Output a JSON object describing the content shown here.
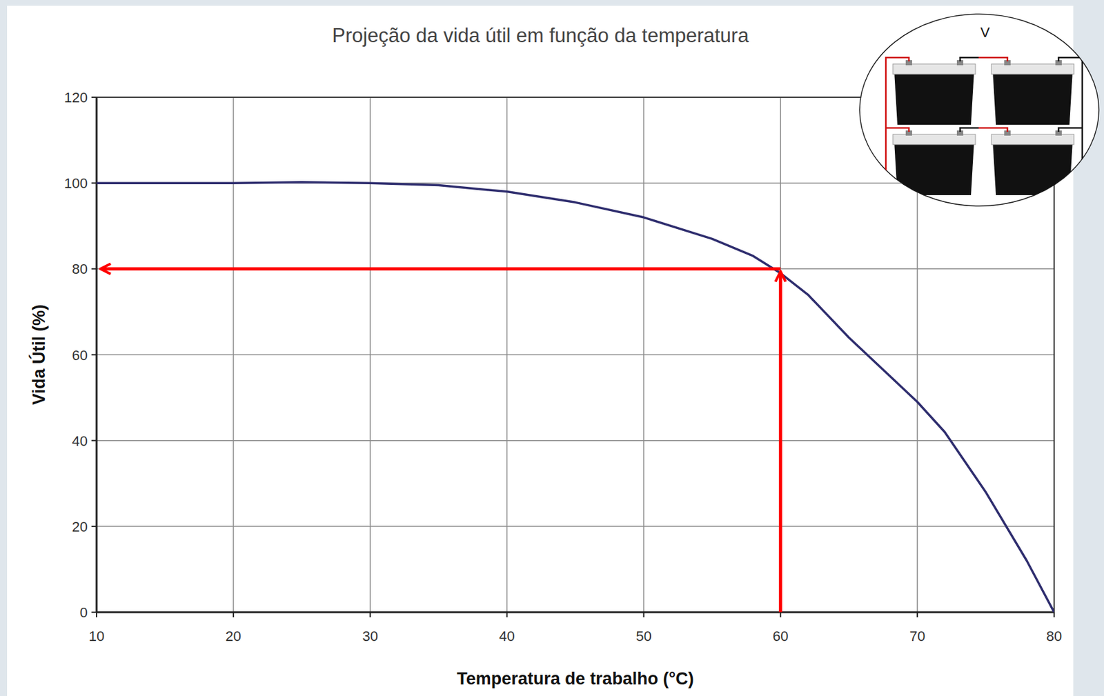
{
  "chart_data": {
    "type": "line",
    "title": "Projeção da vida útil em função da temperatura",
    "x_label": "Temperatura de trabalho (°C)",
    "y_label": "Vida Útil (%)",
    "x": [
      10,
      20,
      25,
      30,
      35,
      40,
      45,
      50,
      55,
      58,
      60,
      62,
      65,
      68,
      70,
      72,
      75,
      78,
      80
    ],
    "values": [
      100,
      100,
      100.2,
      100,
      99.5,
      98,
      95.5,
      92,
      87,
      83,
      79,
      74,
      64,
      55,
      49,
      42,
      28,
      12,
      0
    ],
    "color": "#2e2d6e",
    "xlim": [
      10,
      80
    ],
    "xticks": [
      10,
      20,
      30,
      40,
      50,
      60,
      70,
      80
    ],
    "ylim": [
      0,
      120
    ],
    "yticks": [
      0,
      20,
      40,
      60,
      80,
      100,
      120
    ],
    "grid": true,
    "annotations": [
      {
        "x": 60,
        "y": 80,
        "color": "#ff0000"
      }
    ],
    "inset": {
      "label": "V"
    }
  }
}
